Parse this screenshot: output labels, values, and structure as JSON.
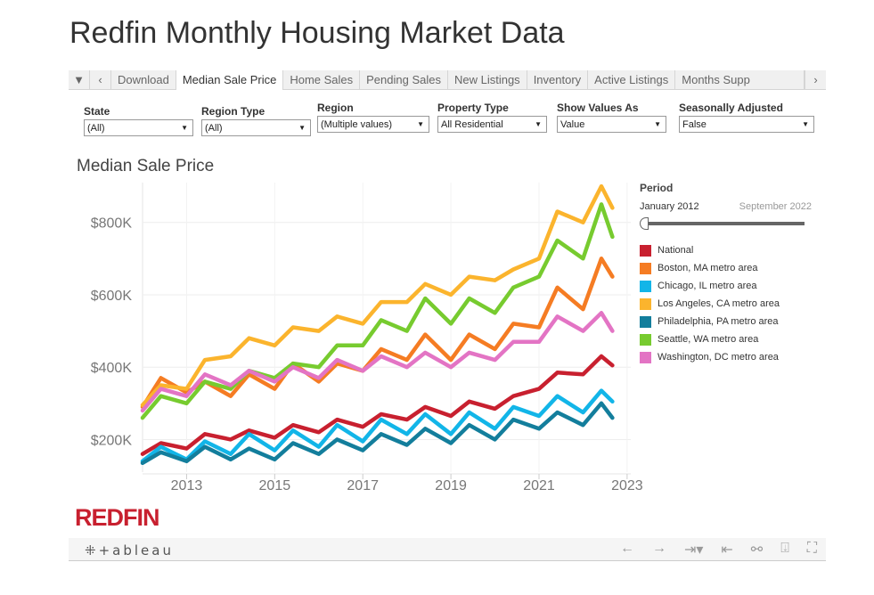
{
  "title": "Redfin Monthly Housing Market Data",
  "tabs": {
    "menu": "▼",
    "prev": "‹",
    "next": "›",
    "items": [
      "Download",
      "Median Sale Price",
      "Home Sales",
      "Pending Sales",
      "New Listings",
      "Inventory",
      "Active Listings",
      "Months Supp"
    ],
    "active": "Median Sale Price"
  },
  "filters": [
    {
      "label": "State",
      "value": "(All)"
    },
    {
      "label": "Region Type",
      "value": "(All)"
    },
    {
      "label": "Region",
      "value": "(Multiple values)"
    },
    {
      "label": "Property Type",
      "value": "All Residential"
    },
    {
      "label": "Show Values As",
      "value": "Value"
    },
    {
      "label": "Seasonally Adjusted",
      "value": "False"
    }
  ],
  "legend": {
    "period_label": "Period",
    "period_start": "January 2012",
    "period_end": "September 2022"
  },
  "logo": "REDFIN",
  "toolbar": {
    "brand": "+ableau",
    "icons": [
      "undo-icon",
      "redo-icon",
      "revert-icon",
      "reset-icon",
      "share-icon",
      "download-icon",
      "fullscreen-icon"
    ]
  },
  "chart_data": {
    "type": "line",
    "title": "Median Sale Price",
    "xlabel": "",
    "ylabel": "",
    "x_ticks": [
      "2013",
      "2015",
      "2017",
      "2019",
      "2021",
      "2023"
    ],
    "y_ticks": [
      "$200K",
      "$400K",
      "$600K",
      "$800K"
    ],
    "y_tick_values": [
      200,
      400,
      600,
      800
    ],
    "ylim": [
      110,
      910
    ],
    "xlim": [
      "2012-01",
      "2023-02"
    ],
    "grid": true,
    "legend_placement": "right",
    "x": [
      "2012-01",
      "2012-06",
      "2013-01",
      "2013-06",
      "2014-01",
      "2014-06",
      "2015-01",
      "2015-06",
      "2016-01",
      "2016-06",
      "2017-01",
      "2017-06",
      "2018-01",
      "2018-06",
      "2019-01",
      "2019-06",
      "2020-01",
      "2020-06",
      "2021-01",
      "2021-06",
      "2022-01",
      "2022-06",
      "2022-09"
    ],
    "unit": "thousand USD",
    "series": [
      {
        "name": "National",
        "color": "#c8202f",
        "values": [
          160,
          190,
          175,
          215,
          200,
          225,
          205,
          240,
          220,
          255,
          235,
          270,
          255,
          290,
          265,
          305,
          285,
          320,
          340,
          385,
          380,
          430,
          405
        ]
      },
      {
        "name": "Boston, MA metro area",
        "color": "#f57c23",
        "values": [
          290,
          370,
          330,
          360,
          320,
          380,
          340,
          410,
          360,
          410,
          390,
          450,
          420,
          490,
          420,
          490,
          450,
          520,
          510,
          620,
          560,
          700,
          650
        ]
      },
      {
        "name": "Chicago, IL metro area",
        "color": "#12b5e8",
        "values": [
          140,
          180,
          145,
          195,
          160,
          215,
          170,
          225,
          180,
          240,
          195,
          255,
          215,
          270,
          215,
          275,
          230,
          290,
          265,
          320,
          275,
          335,
          305
        ]
      },
      {
        "name": "Los Angeles, CA metro area",
        "color": "#fbb42d",
        "values": [
          295,
          350,
          340,
          420,
          430,
          480,
          460,
          510,
          500,
          540,
          520,
          580,
          580,
          630,
          600,
          650,
          640,
          670,
          700,
          830,
          800,
          900,
          840
        ]
      },
      {
        "name": "Philadelphia, PA metro area",
        "color": "#137e9c",
        "values": [
          135,
          165,
          140,
          180,
          145,
          175,
          145,
          190,
          160,
          200,
          170,
          215,
          185,
          230,
          190,
          240,
          200,
          255,
          230,
          275,
          240,
          300,
          260
        ]
      },
      {
        "name": "Seattle, WA metro area",
        "color": "#77cb2f",
        "values": [
          260,
          320,
          300,
          360,
          340,
          390,
          370,
          410,
          400,
          460,
          460,
          530,
          500,
          590,
          520,
          590,
          550,
          620,
          650,
          750,
          700,
          850,
          760
        ]
      },
      {
        "name": "Washington, DC metro area",
        "color": "#e374c4",
        "values": [
          280,
          340,
          320,
          380,
          350,
          390,
          360,
          400,
          370,
          420,
          390,
          430,
          400,
          440,
          400,
          440,
          420,
          470,
          470,
          540,
          500,
          550,
          500
        ]
      }
    ]
  }
}
